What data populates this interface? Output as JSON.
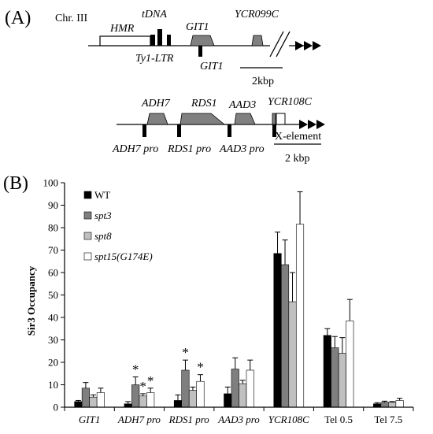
{
  "panel_a": {
    "panel_label": "(A)",
    "locus1": {
      "chromosome": "Chr. III",
      "genes": [
        "HMR",
        "tDNA",
        "GIT1",
        "YCR099C"
      ],
      "elements_below": [
        "Ty1-LTR",
        "GIT1"
      ],
      "scale_label": "2kbp"
    },
    "locus2": {
      "genes": [
        "ADH7",
        "RDS1",
        "AAD3",
        "YCR108C"
      ],
      "promoters": [
        "ADH7 pro",
        "RDS1 pro",
        "AAD3 pro"
      ],
      "x_element_label": "X-element",
      "scale_label": "2 kbp"
    }
  },
  "panel_b": {
    "panel_label": "(B)"
  },
  "chart_data": {
    "type": "bar",
    "title": "",
    "xlabel": "",
    "ylabel": "Sir3 Occupancy",
    "ylim": [
      0,
      100
    ],
    "yticks": [
      0,
      10,
      20,
      30,
      40,
      50,
      60,
      70,
      80,
      90,
      100
    ],
    "grid": false,
    "legend_position": "top-left",
    "categories": [
      "GIT1",
      "ADH7 pro",
      "RDS1 pro",
      "AAD3 pro",
      "YCR108C",
      "Tel 0.5",
      "Tel 7.5"
    ],
    "category_italic": [
      true,
      true,
      true,
      true,
      true,
      false,
      false
    ],
    "series": [
      {
        "name": "WT",
        "italic": false,
        "color": "#000000",
        "values": [
          2.5,
          1.5,
          3,
          6,
          68.5,
          32,
          1.5
        ],
        "errors": [
          0.5,
          1,
          2.5,
          3,
          9.5,
          3,
          0.5
        ]
      },
      {
        "name": "spt3",
        "italic": true,
        "color": "#7f7f7f",
        "values": [
          8.5,
          10,
          16.5,
          17,
          63.5,
          26.5,
          2.2
        ],
        "errors": [
          2.5,
          3.5,
          4.5,
          5,
          11,
          5,
          0.5
        ]
      },
      {
        "name": "spt8",
        "italic": true,
        "color": "#c0c0c0",
        "values": [
          4.5,
          5,
          7.5,
          10.5,
          47,
          24,
          2.2
        ],
        "errors": [
          1,
          1,
          1.5,
          1.5,
          13,
          7,
          0.3
        ]
      },
      {
        "name": "spt15(G174E)",
        "italic": true,
        "color": "#ffffff",
        "values": [
          6.5,
          6.5,
          11.5,
          16.5,
          81.5,
          38.5,
          3
        ],
        "errors": [
          2,
          2,
          3,
          4.5,
          14.5,
          9.5,
          1
        ]
      }
    ],
    "annotations": [
      {
        "text": "*",
        "category": "ADH7 pro",
        "series": "spt3"
      },
      {
        "text": "*",
        "category": "ADH7 pro",
        "series": "spt8"
      },
      {
        "text": "*",
        "category": "ADH7 pro",
        "series": "spt15(G174E)"
      },
      {
        "text": "*",
        "category": "RDS1 pro",
        "series": "spt3"
      },
      {
        "text": "*",
        "category": "RDS1 pro",
        "series": "spt15(G174E)"
      }
    ]
  }
}
